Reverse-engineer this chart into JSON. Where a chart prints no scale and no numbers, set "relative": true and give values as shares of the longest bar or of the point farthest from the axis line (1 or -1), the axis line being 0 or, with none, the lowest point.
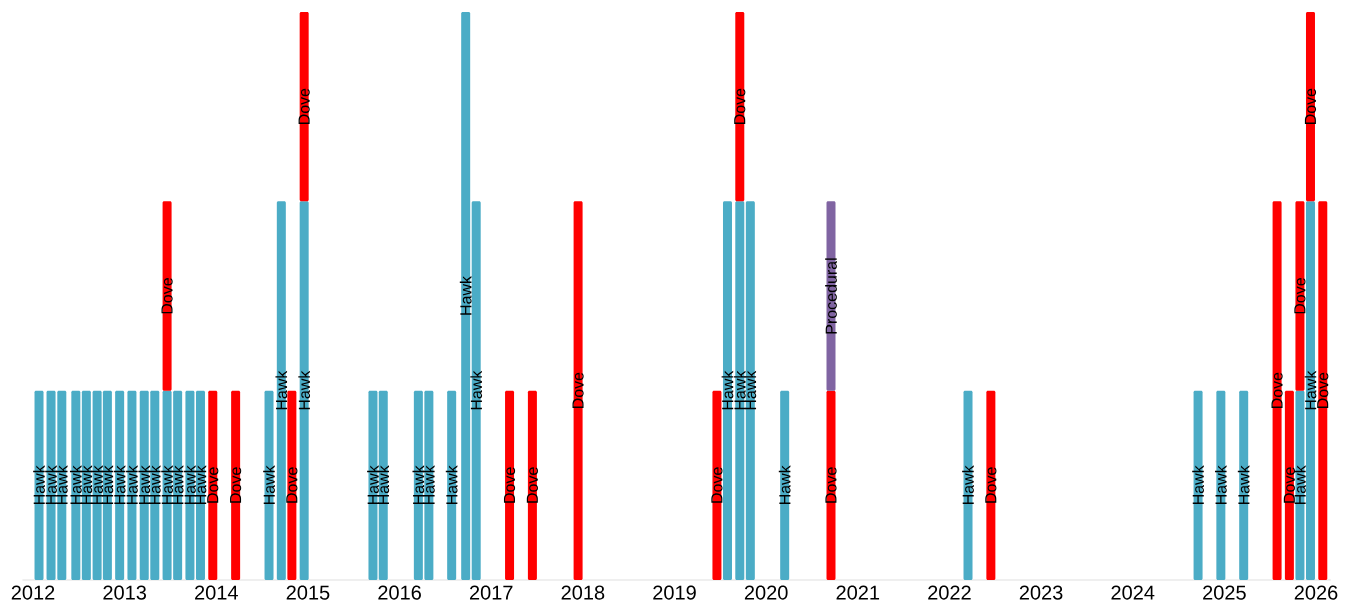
{
  "chart_data": {
    "type": "bar",
    "stacked": true,
    "relative": true,
    "tick_labels": "x",
    "x": [
      "2012-01-25",
      "2012-03-13",
      "2012-04-25",
      "2012-06-20",
      "2012-08-01",
      "2012-09-13",
      "2012-10-24",
      "2012-12-12",
      "2013-01-30",
      "2013-03-20",
      "2013-05-01",
      "2013-06-19",
      "2013-07-31",
      "2013-09-18",
      "2013-10-30",
      "2013-12-18",
      "2014-03-19",
      "2014-07-30",
      "2014-09-17",
      "2014-10-29",
      "2014-12-17",
      "2015-09-17",
      "2015-10-28",
      "2016-03-16",
      "2016-04-27",
      "2016-07-27",
      "2016-09-21",
      "2016-11-02",
      "2017-03-15",
      "2017-06-14",
      "2017-12-13",
      "2019-06-19",
      "2019-07-31",
      "2019-09-18",
      "2019-10-30",
      "2020-03-15",
      "2020-09-16",
      "2022-03-16",
      "2022-06-15",
      "2024-09-18",
      "2024-12-18",
      "2025-03-19",
      "2025-07-30",
      "2025-09-17",
      "2025-10-29",
      "2025-12-10",
      "2026-01-28"
    ],
    "xlim": [
      "2011-11-20",
      "2026-03-01"
    ],
    "xticks": [
      "2012",
      "2013",
      "2014",
      "2015",
      "2016",
      "2017",
      "2018",
      "2019",
      "2020",
      "2021",
      "2022",
      "2023",
      "2024",
      "2025",
      "2026"
    ],
    "series": [
      {
        "name": "Hawk",
        "color": "#4bacc6",
        "values": [
          0.3333,
          0.3333,
          0.3333,
          0.3333,
          0.3333,
          0.3333,
          0.3333,
          0.3333,
          0.3333,
          0.3333,
          0.3333,
          0.3333,
          0.3333,
          0.3333,
          0.3333,
          null,
          null,
          0.3333,
          0.6667,
          null,
          0.6667,
          0.3333,
          0.3333,
          0.3333,
          0.3333,
          0.3333,
          1,
          0.6667,
          null,
          null,
          null,
          null,
          0.6667,
          0.6667,
          0.6667,
          0.3333,
          null,
          0.3333,
          null,
          0.3333,
          0.3333,
          0.3333,
          null,
          null,
          0.3333,
          0.6667,
          null
        ]
      },
      {
        "name": "Dove",
        "color": "#ff0000",
        "values": [
          null,
          null,
          null,
          null,
          null,
          null,
          null,
          null,
          null,
          null,
          null,
          0.3333,
          null,
          null,
          null,
          0.3333,
          0.3333,
          null,
          null,
          0.3333,
          0.3333,
          null,
          null,
          null,
          null,
          null,
          null,
          null,
          0.3333,
          0.3333,
          0.6667,
          0.3333,
          null,
          0.3333,
          null,
          null,
          0.3333,
          null,
          0.3333,
          null,
          null,
          null,
          0.6667,
          0.3333,
          0.3333,
          0.3333,
          0.6667
        ]
      },
      {
        "name": "Procedural",
        "color": "#8064a2",
        "values": [
          null,
          null,
          null,
          null,
          null,
          null,
          null,
          null,
          null,
          null,
          null,
          null,
          null,
          null,
          null,
          null,
          null,
          null,
          null,
          null,
          null,
          null,
          null,
          null,
          null,
          null,
          null,
          null,
          null,
          null,
          null,
          null,
          null,
          null,
          null,
          null,
          0.3333,
          null,
          null,
          null,
          null,
          null,
          null,
          null,
          null,
          null,
          null
        ]
      }
    ]
  }
}
